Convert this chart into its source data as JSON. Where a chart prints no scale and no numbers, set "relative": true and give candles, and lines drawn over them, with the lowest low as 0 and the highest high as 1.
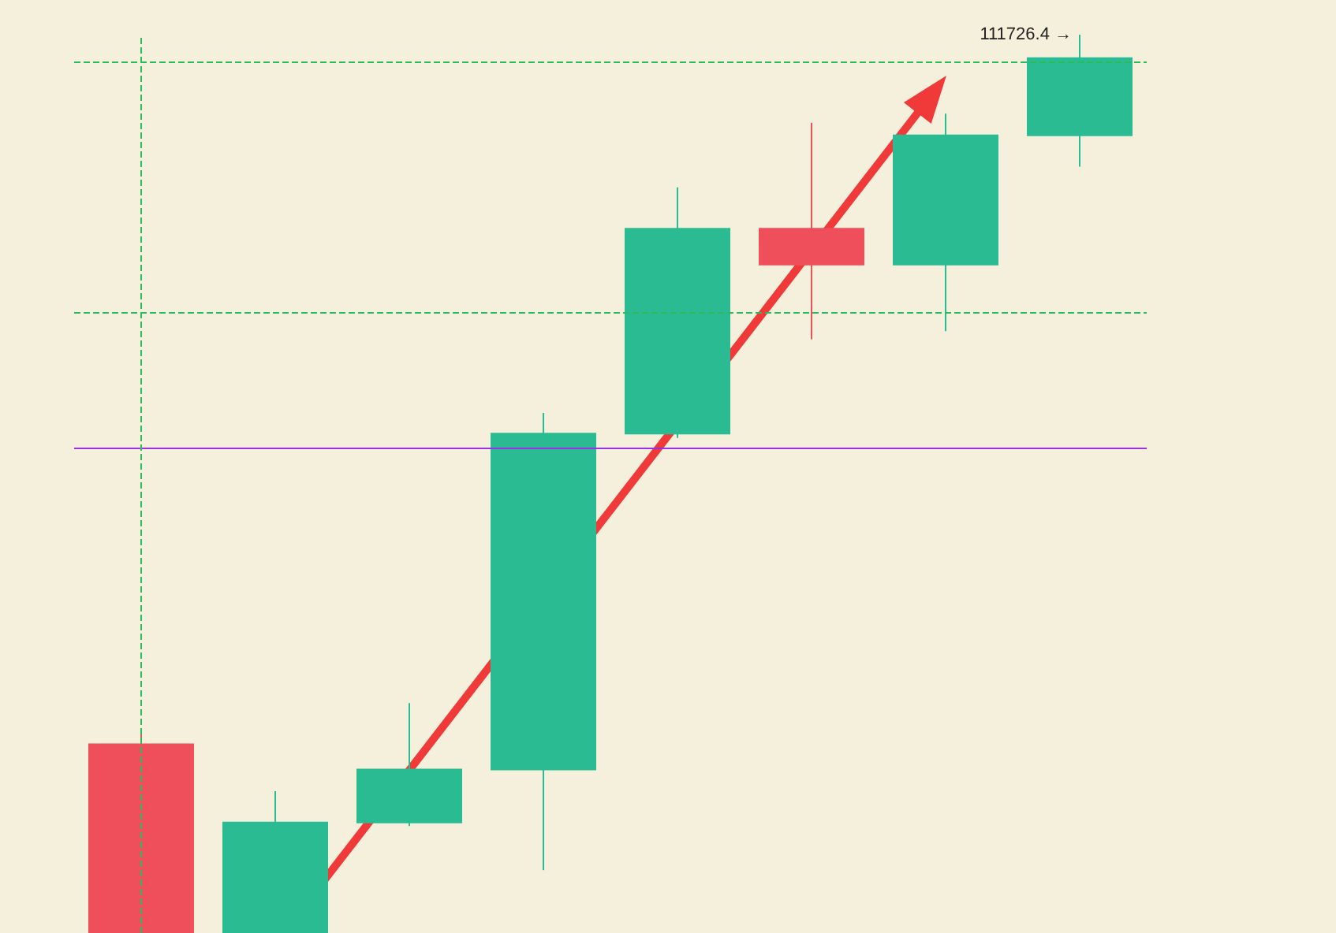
{
  "chart_data": {
    "type": "candlestick",
    "relative": true,
    "categories": [
      null,
      null,
      null,
      null,
      null,
      null,
      null,
      null
    ],
    "ohlc": [
      [
        0.21,
        0.226,
        0,
        0
      ],
      [
        0,
        0.158,
        0,
        0.123
      ],
      [
        0.123,
        0.256,
        0.119,
        0.182
      ],
      [
        0.182,
        0.579,
        0.07,
        0.556
      ],
      [
        0.556,
        0.83,
        0.551,
        0.784
      ],
      [
        0.784,
        0.902,
        0.661,
        0.744
      ],
      [
        0.744,
        0.912,
        0.67,
        0.888
      ],
      [
        0.888,
        1,
        0.853,
        0.974
      ]
    ],
    "colors": [
      "#ef4f5a",
      "#2bbb92",
      "#2bbb92",
      "#2bbb92",
      "#2bbb92",
      "#ef4f5a",
      "#2bbb92",
      "#2bbb92"
    ],
    "ref_lines": [
      {
        "axis": "y",
        "value": 0.969,
        "color": "#2bbb5a",
        "line_style": "dashed"
      },
      {
        "axis": "y",
        "value": 0.69,
        "color": "#2bbb5a",
        "line_style": "dashed"
      },
      {
        "axis": "y",
        "value": 0.54,
        "color": "#9b30e0",
        "line_style": "solid"
      }
    ],
    "annotations": [
      "111726.4 →"
    ],
    "grid": false
  }
}
